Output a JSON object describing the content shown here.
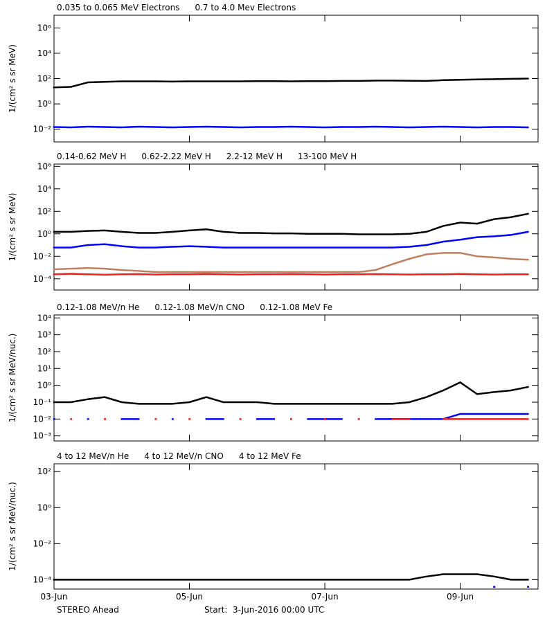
{
  "chart_data": [
    {
      "type": "line",
      "ylog": true,
      "ylabel": "1/(cm² s sr MeV)",
      "xlim": [
        0,
        7.15
      ],
      "xticks": [
        0,
        2,
        4,
        6
      ],
      "ylim": [
        0.001,
        10000000
      ],
      "yticks": [
        {
          "value": 0.01,
          "label": "10⁻²"
        },
        {
          "value": 1,
          "label": "10⁰"
        },
        {
          "value": 100,
          "label": "10²"
        },
        {
          "value": 10000,
          "label": "10⁴"
        },
        {
          "value": 1000000,
          "label": "10⁶"
        }
      ],
      "x": [
        0,
        0.25,
        0.5,
        0.75,
        1,
        1.25,
        1.5,
        1.75,
        2,
        2.25,
        2.5,
        2.75,
        3,
        3.25,
        3.5,
        3.75,
        4,
        4.25,
        4.5,
        4.75,
        5,
        5.25,
        5.5,
        5.75,
        6,
        6.25,
        6.5,
        6.75,
        7
      ],
      "series": [
        {
          "name": "0.035 to 0.065 MeV Electrons",
          "color": "#000000",
          "values": [
            20,
            22,
            50,
            55,
            60,
            60,
            60,
            58,
            60,
            60,
            60,
            60,
            62,
            62,
            60,
            62,
            62,
            65,
            65,
            70,
            70,
            68,
            65,
            75,
            80,
            85,
            90,
            95,
            100
          ]
        },
        {
          "name": "0.7 to 4.0 Mev Electrons",
          "color": "#0000ff",
          "values": [
            0.015,
            0.014,
            0.016,
            0.015,
            0.014,
            0.016,
            0.015,
            0.014,
            0.015,
            0.016,
            0.015,
            0.014,
            0.015,
            0.015,
            0.016,
            0.015,
            0.014,
            0.015,
            0.015,
            0.016,
            0.015,
            0.014,
            0.015,
            0.016,
            0.015,
            0.014,
            0.015,
            0.015,
            0.014
          ]
        }
      ]
    },
    {
      "type": "line",
      "ylog": true,
      "ylabel": "1/(cm² s sr MeV)",
      "xlim": [
        0,
        7.15
      ],
      "xticks": [
        0,
        2,
        4,
        6
      ],
      "ylim": [
        1e-05,
        1600000
      ],
      "yticks": [
        {
          "value": 0.0001,
          "label": "10⁻⁴"
        },
        {
          "value": 0.01,
          "label": "10⁻²"
        },
        {
          "value": 1,
          "label": "10⁰"
        },
        {
          "value": 100,
          "label": "10²"
        },
        {
          "value": 10000,
          "label": "10⁴"
        },
        {
          "value": 1000000,
          "label": "10⁶"
        }
      ],
      "x": [
        0,
        0.25,
        0.5,
        0.75,
        1,
        1.25,
        1.5,
        1.75,
        2,
        2.25,
        2.5,
        2.75,
        3,
        3.25,
        3.5,
        3.75,
        4,
        4.25,
        4.5,
        4.75,
        5,
        5.25,
        5.5,
        5.75,
        6,
        6.25,
        6.5,
        6.75,
        7
      ],
      "series": [
        {
          "name": "0.14-0.62 MeV H",
          "color": "#000000",
          "values": [
            1.5,
            1.5,
            1.8,
            2,
            1.5,
            1.2,
            1.2,
            1.5,
            2,
            2.5,
            1.5,
            1.2,
            1.2,
            1.1,
            1.1,
            1,
            1,
            1,
            0.9,
            0.9,
            0.9,
            1,
            1.5,
            5,
            10,
            8,
            20,
            30,
            60
          ]
        },
        {
          "name": "0.62-2.22 MeV H",
          "color": "#0000ff",
          "values": [
            0.06,
            0.06,
            0.1,
            0.12,
            0.08,
            0.06,
            0.06,
            0.07,
            0.08,
            0.07,
            0.06,
            0.06,
            0.06,
            0.06,
            0.06,
            0.06,
            0.06,
            0.06,
            0.06,
            0.06,
            0.06,
            0.07,
            0.1,
            0.2,
            0.3,
            0.5,
            0.6,
            0.8,
            1.5
          ]
        },
        {
          "name": "2.2-12 MeV H",
          "color": "#c08060",
          "values": [
            0.0007,
            0.0008,
            0.0009,
            0.0008,
            0.0006,
            0.0005,
            0.0004,
            0.0004,
            0.0004,
            0.0004,
            0.0004,
            0.0004,
            0.0004,
            0.0004,
            0.0004,
            0.0004,
            0.0004,
            0.0004,
            0.0004,
            0.0006,
            0.002,
            0.006,
            0.015,
            0.02,
            0.02,
            0.01,
            0.008,
            0.006,
            0.005
          ]
        },
        {
          "name": "13-100 MeV H",
          "color": "#e8201c",
          "values": [
            0.00025,
            0.00028,
            0.00025,
            0.00023,
            0.00025,
            0.00026,
            0.00024,
            0.00025,
            0.00025,
            0.00027,
            0.00025,
            0.00024,
            0.00025,
            0.00025,
            0.00026,
            0.00025,
            0.00024,
            0.00025,
            0.00025,
            0.00026,
            0.00025,
            0.00024,
            0.00025,
            0.00025,
            0.00027,
            0.00025,
            0.00024,
            0.00025,
            0.00025
          ]
        }
      ]
    },
    {
      "type": "line",
      "ylog": true,
      "ylabel": "1/(cm² s sr MeV/nuc.)",
      "xlim": [
        0,
        7.15
      ],
      "xticks": [
        0,
        2,
        4,
        6
      ],
      "ylim": [
        0.0005,
        15000
      ],
      "yticks": [
        {
          "value": 0.001,
          "label": "10⁻³"
        },
        {
          "value": 0.01,
          "label": "10⁻²"
        },
        {
          "value": 0.1,
          "label": "10⁻¹"
        },
        {
          "value": 1,
          "label": "10⁰"
        },
        {
          "value": 10,
          "label": "10¹"
        },
        {
          "value": 100,
          "label": "10²"
        },
        {
          "value": 1000,
          "label": "10³"
        },
        {
          "value": 10000,
          "label": "10⁴"
        }
      ],
      "x": [
        0,
        0.25,
        0.5,
        0.75,
        1,
        1.25,
        1.5,
        1.75,
        2,
        2.25,
        2.5,
        2.75,
        3,
        3.25,
        3.5,
        3.75,
        4,
        4.25,
        4.5,
        4.75,
        5,
        5.25,
        5.5,
        5.75,
        6,
        6.25,
        6.5,
        6.75,
        7
      ],
      "series": [
        {
          "name": "0.12-1.08 MeV/n He",
          "color": "#000000",
          "values": [
            0.1,
            0.1,
            0.15,
            0.2,
            0.1,
            0.08,
            0.08,
            0.08,
            0.1,
            0.2,
            0.1,
            0.1,
            0.1,
            0.08,
            0.08,
            0.08,
            0.08,
            0.08,
            0.08,
            0.08,
            0.08,
            0.1,
            0.2,
            0.5,
            1.5,
            0.3,
            0.4,
            0.5,
            0.8
          ]
        },
        {
          "name": "0.12-1.08 MeV/n CNO",
          "color": "#0000ff",
          "values": [
            0.01,
            null,
            0.01,
            null,
            0.01,
            0.01,
            null,
            0.01,
            null,
            0.01,
            0.01,
            null,
            0.01,
            0.01,
            null,
            0.01,
            0.01,
            0.01,
            null,
            0.01,
            0.01,
            0.01,
            0.01,
            0.01,
            0.02,
            0.02,
            0.02,
            0.02,
            0.02
          ]
        },
        {
          "name": "0.12-1.08 MeV Fe",
          "color": "#e8201c",
          "values": [
            null,
            0.01,
            null,
            0.01,
            null,
            null,
            0.01,
            null,
            0.01,
            null,
            null,
            0.01,
            null,
            null,
            0.01,
            null,
            0.01,
            null,
            0.01,
            null,
            0.01,
            0.01,
            null,
            0.01,
            0.01,
            0.01,
            0.01,
            0.01,
            0.01
          ]
        }
      ]
    },
    {
      "type": "line",
      "ylog": true,
      "ylabel": "1/(cm² s sr MeV/nuc.)",
      "xlim": [
        0,
        7.15
      ],
      "xticks": [
        {
          "value": 0,
          "label": "03-Jun"
        },
        {
          "value": 2,
          "label": "05-Jun"
        },
        {
          "value": 4,
          "label": "07-Jun"
        },
        {
          "value": 6,
          "label": "09-Jun"
        }
      ],
      "ylim": [
        3e-05,
        270
      ],
      "yticks": [
        {
          "value": 0.0001,
          "label": "10⁻⁴"
        },
        {
          "value": 0.01,
          "label": "10⁻²"
        },
        {
          "value": 1,
          "label": "10⁰"
        },
        {
          "value": 100,
          "label": "10²"
        }
      ],
      "x": [
        0,
        0.25,
        0.5,
        0.75,
        1,
        1.25,
        1.5,
        1.75,
        2,
        2.25,
        2.5,
        2.75,
        3,
        3.25,
        3.5,
        3.75,
        4,
        4.25,
        4.5,
        4.75,
        5,
        5.25,
        5.5,
        5.75,
        6,
        6.25,
        6.5,
        6.75,
        7
      ],
      "series": [
        {
          "name": "4 to 12 MeV/n He",
          "color": "#000000",
          "values": [
            0.0001,
            0.0001,
            0.0001,
            0.0001,
            0.0001,
            0.0001,
            0.0001,
            0.0001,
            0.0001,
            0.0001,
            0.0001,
            0.0001,
            0.0001,
            0.0001,
            0.0001,
            0.0001,
            0.0001,
            0.0001,
            0.0001,
            0.0001,
            0.0001,
            0.0001,
            0.00015,
            0.0002,
            0.0002,
            0.0002,
            0.00015,
            0.0001,
            0.0001
          ]
        },
        {
          "name": "4 to 12 MeV/n CNO",
          "color": "#0000ff",
          "values": [
            null,
            null,
            null,
            null,
            null,
            null,
            null,
            null,
            null,
            null,
            null,
            null,
            null,
            null,
            null,
            null,
            null,
            null,
            null,
            null,
            null,
            null,
            null,
            null,
            null,
            null,
            4e-05,
            null,
            4e-05
          ]
        },
        {
          "name": "4 to 12 MeV Fe",
          "color": "#e8201c",
          "values": [
            null,
            null,
            null,
            null,
            null,
            null,
            null,
            null,
            null,
            null,
            null,
            null,
            null,
            null,
            null,
            null,
            null,
            null,
            null,
            null,
            null,
            null,
            null,
            null,
            null,
            null,
            null,
            null,
            null
          ]
        }
      ]
    }
  ],
  "footer": {
    "observatory": "STEREO Ahead",
    "start": "Start:  3-Jun-2016 00:00 UTC"
  }
}
